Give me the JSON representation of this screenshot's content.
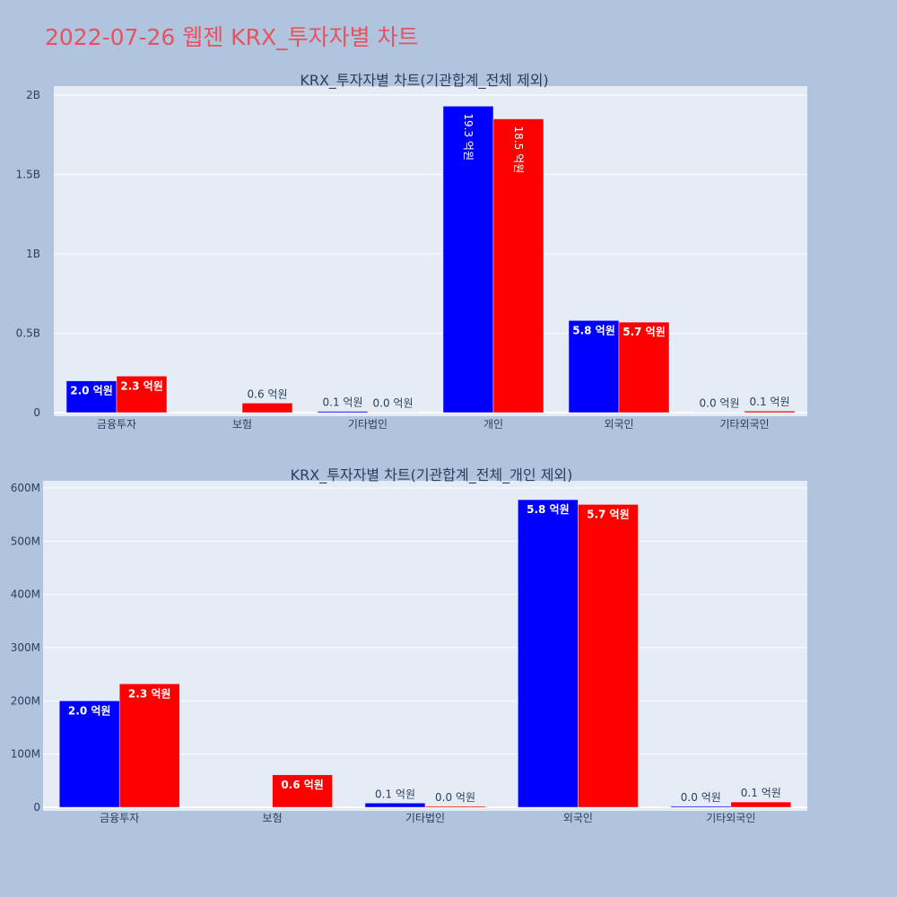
{
  "page_title": "2022-07-26 웹젠 KRX_투자자별 차트",
  "colors": {
    "buy": "#0000ff",
    "sell": "#ff0000",
    "title": "#e8525f",
    "background": "#b0c4de",
    "plot_background": "#e5ecf6"
  },
  "chart_data": [
    {
      "type": "bar",
      "title": "KRX_투자자별 차트(기관합계_전체 제외)",
      "categories": [
        "금융투자",
        "보험",
        "기타법인",
        "개인",
        "외국인",
        "기타외국인"
      ],
      "series": [
        {
          "color": "#0000ff",
          "values": [
            200000000,
            0,
            8000000,
            1930000000,
            580000000,
            2000000
          ],
          "labels": [
            "2.0 억원",
            "",
            "0.1 억원",
            "19.3 억원",
            "5.8 억원",
            "0.0 억원"
          ]
        },
        {
          "color": "#ff0000",
          "values": [
            230000000,
            60000000,
            2000000,
            1850000000,
            570000000,
            10000000
          ],
          "labels": [
            "2.3 억원",
            "0.6 억원",
            "0.0 억원",
            "18.5 억원",
            "5.7 억원",
            "0.1 억원"
          ]
        }
      ],
      "ylim": [
        0,
        2000000000
      ],
      "ticks": [
        0,
        500000000,
        1000000000,
        1500000000,
        2000000000
      ],
      "tick_labels": [
        "0",
        "0.5B",
        "1B",
        "1.5B",
        "2B"
      ],
      "grid": true
    },
    {
      "type": "bar",
      "title": "KRX_투자자별 차트(기관합계_전체_개인 제외)",
      "categories": [
        "금융투자",
        "보험",
        "기타법인",
        "외국인",
        "기타외국인"
      ],
      "series": [
        {
          "color": "#0000ff",
          "values": [
            200000000,
            0,
            8000000,
            578000000,
            2000000
          ],
          "labels": [
            "2.0 억원",
            "",
            "0.1 억원",
            "5.8 억원",
            "0.0 억원"
          ]
        },
        {
          "color": "#ff0000",
          "values": [
            232000000,
            61000000,
            2000000,
            569000000,
            10000000
          ],
          "labels": [
            "2.3 억원",
            "0.6 억원",
            "0.0 억원",
            "5.7 억원",
            "0.1 억원"
          ]
        }
      ],
      "ylim": [
        0,
        600000000
      ],
      "ticks": [
        0,
        100000000,
        200000000,
        300000000,
        400000000,
        500000000,
        600000000
      ],
      "tick_labels": [
        "0",
        "100M",
        "200M",
        "300M",
        "400M",
        "500M",
        "600M"
      ],
      "grid": true
    }
  ]
}
